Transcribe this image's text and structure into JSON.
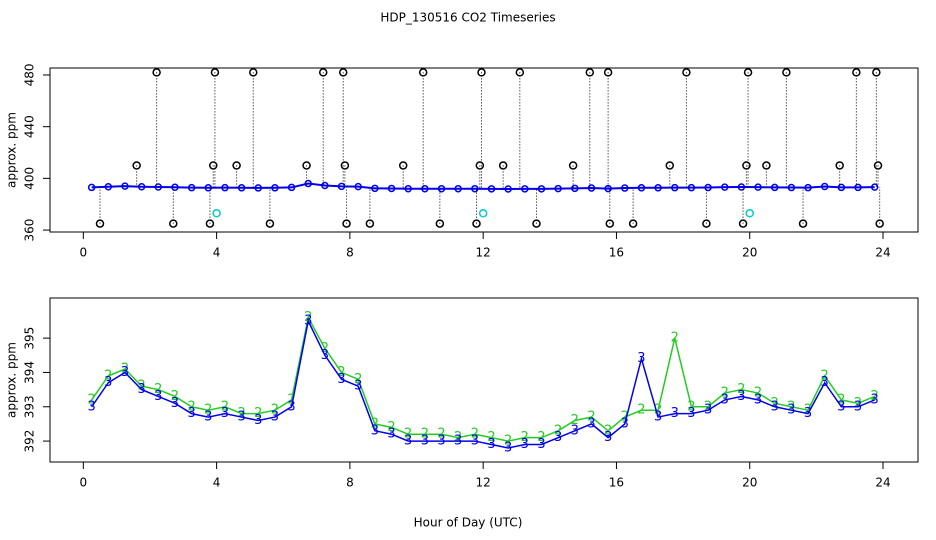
{
  "title": "HDP_130516  CO2 Timeseries",
  "xlabel": "Hour of Day (UTC)",
  "chart_data": [
    {
      "type": "scatter",
      "ylabel": "approx. ppm",
      "xlim": [
        -1,
        25.05
      ],
      "ylim": [
        358.5,
        485.4
      ],
      "xticks": [
        0,
        4,
        8,
        12,
        16,
        20,
        24
      ],
      "yticks": [
        360,
        400,
        440,
        480
      ],
      "series": [
        {
          "color": "#0000ee",
          "marker": "dot",
          "x": [
            0.25,
            0.75,
            1.25,
            1.75,
            2.25,
            2.75,
            3.25,
            3.75,
            4.25,
            4.75,
            5.25,
            5.75,
            6.25,
            6.75,
            7.25,
            7.75,
            8.25,
            8.75,
            9.25,
            9.75,
            10.25,
            10.75,
            11.25,
            11.75,
            12.25,
            12.75,
            13.25,
            13.75,
            14.25,
            14.75,
            15.25,
            15.75,
            16.25,
            16.75,
            17.25,
            17.75,
            18.25,
            18.75,
            19.25,
            19.75,
            20.25,
            20.75,
            21.25,
            21.75,
            22.25,
            22.75,
            23.25,
            23.75
          ],
          "values": [
            393,
            393.5,
            394,
            393.5,
            393.3,
            393.1,
            392.8,
            392.7,
            392.8,
            392.7,
            392.6,
            392.7,
            393,
            396,
            394.5,
            393.8,
            393.6,
            392.3,
            392.2,
            392,
            392,
            392,
            392,
            392,
            391.9,
            391.8,
            391.9,
            391.9,
            392.1,
            392.3,
            392.5,
            392.1,
            392.5,
            392.7,
            392.7,
            392.8,
            392.8,
            392.9,
            393.2,
            393.3,
            393.2,
            393,
            392.9,
            392.8,
            393.7,
            393,
            393,
            393.2
          ]
        },
        {
          "color": "#000000",
          "marker": "ring",
          "drop": true,
          "x": [
            0.5,
            1.6,
            2.2,
            2.7,
            3.8,
            3.9,
            3.95,
            4.6,
            5.1,
            5.6,
            6.7,
            7.2,
            7.8,
            7.85,
            7.9,
            8.6,
            9.6,
            10.2,
            10.7,
            11.8,
            11.9,
            11.95,
            12.6,
            13.1,
            13.6,
            14.7,
            15.2,
            15.75,
            15.8,
            16.5,
            17.6,
            18.1,
            18.7,
            19.8,
            19.9,
            19.95,
            20.5,
            21.1,
            21.6,
            22.7,
            23.2,
            23.8,
            23.85,
            23.9
          ],
          "values": [
            365,
            410,
            482,
            365,
            365,
            410,
            482,
            410,
            482,
            365,
            410,
            482,
            482,
            410,
            365,
            365,
            410,
            482,
            365,
            365,
            410,
            482,
            410,
            482,
            365,
            410,
            482,
            482,
            365,
            365,
            410,
            482,
            365,
            365,
            410,
            482,
            410,
            482,
            365,
            410,
            482,
            482,
            410,
            365
          ]
        },
        {
          "color": "#00cccc",
          "marker": "ring",
          "x": [
            4,
            12,
            20
          ],
          "values": [
            373,
            373,
            373
          ]
        }
      ]
    },
    {
      "type": "glyph",
      "ylabel": "approx. ppm",
      "xlim": [
        -1,
        25.05
      ],
      "ylim": [
        391.39,
        396.17
      ],
      "xticks": [
        0,
        4,
        8,
        12,
        16,
        20,
        24
      ],
      "yticks": [
        392,
        393,
        394,
        395
      ],
      "series": [
        {
          "name": "2",
          "color": "#22cc22",
          "x": [
            0.25,
            0.75,
            1.25,
            1.75,
            2.25,
            2.75,
            3.25,
            3.75,
            4.25,
            4.75,
            5.25,
            5.75,
            6.25,
            6.75,
            7.25,
            7.75,
            8.25,
            8.75,
            9.25,
            9.75,
            10.25,
            10.75,
            11.25,
            11.75,
            12.25,
            12.75,
            13.25,
            13.75,
            14.25,
            14.75,
            15.25,
            15.75,
            16.25,
            16.75,
            17.25,
            17.75,
            18.25,
            18.75,
            19.25,
            19.75,
            20.25,
            20.75,
            21.25,
            21.75,
            22.25,
            22.75,
            23.25,
            23.75
          ],
          "values": [
            393.2,
            393.9,
            394.1,
            393.6,
            393.5,
            393.3,
            393,
            392.9,
            393,
            392.8,
            392.8,
            392.9,
            393.2,
            395.6,
            394.7,
            394,
            393.8,
            392.5,
            392.4,
            392.2,
            392.2,
            392.2,
            392.1,
            392.2,
            392.1,
            392,
            392.1,
            392.1,
            392.3,
            392.6,
            392.7,
            392.3,
            392.7,
            392.9,
            392.9,
            395,
            393,
            393,
            393.4,
            393.5,
            393.4,
            393.1,
            393,
            392.9,
            393.9,
            393.2,
            393.1,
            393.3
          ]
        },
        {
          "name": "3",
          "color": "#0000ee",
          "x": [
            0.25,
            0.75,
            1.25,
            1.75,
            2.25,
            2.75,
            3.25,
            3.75,
            4.25,
            4.75,
            5.25,
            5.75,
            6.25,
            6.75,
            7.25,
            7.75,
            8.25,
            8.75,
            9.25,
            9.75,
            10.25,
            10.75,
            11.25,
            11.75,
            12.25,
            12.75,
            13.25,
            13.75,
            14.25,
            14.75,
            15.25,
            15.75,
            16.25,
            16.75,
            17.25,
            17.75,
            18.25,
            18.75,
            19.25,
            19.75,
            20.25,
            20.75,
            21.25,
            21.75,
            22.25,
            22.75,
            23.25,
            23.75
          ],
          "values": [
            393,
            393.7,
            394,
            393.5,
            393.3,
            393.1,
            392.8,
            392.7,
            392.8,
            392.7,
            392.6,
            392.7,
            393,
            395.5,
            394.5,
            393.8,
            393.6,
            392.3,
            392.2,
            392,
            392,
            392,
            392,
            392,
            391.9,
            391.8,
            391.9,
            391.9,
            392.1,
            392.3,
            392.5,
            392.1,
            392.5,
            394.4,
            392.7,
            392.8,
            392.8,
            392.9,
            393.2,
            393.3,
            393.2,
            393,
            392.9,
            392.8,
            393.7,
            393,
            393,
            393.2
          ]
        }
      ]
    }
  ]
}
